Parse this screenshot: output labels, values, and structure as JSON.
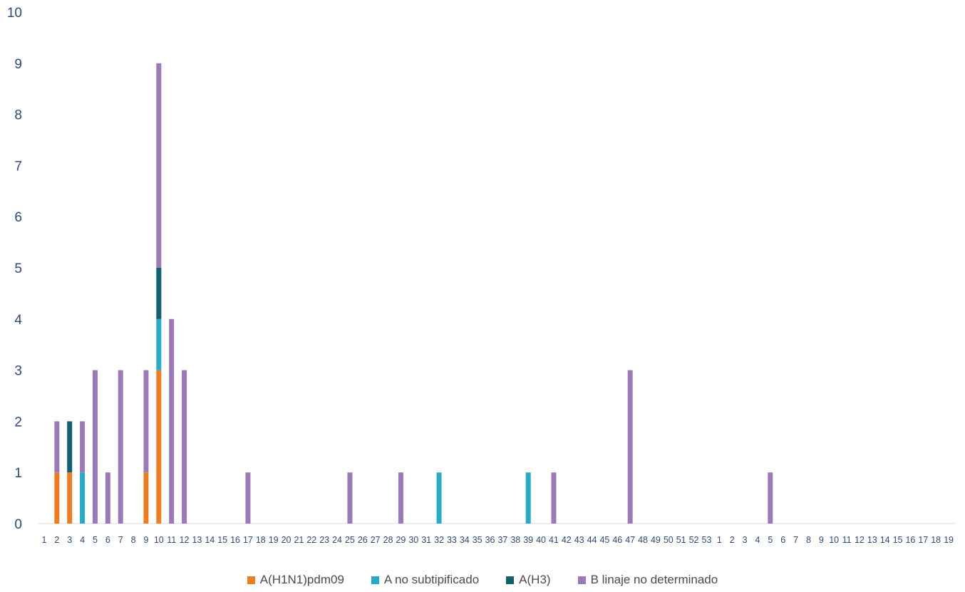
{
  "chart_data": {
    "type": "bar",
    "stacked": true,
    "title": "",
    "xlabel": "",
    "ylabel": "",
    "ylim": [
      0,
      10
    ],
    "yticks": [
      0,
      1,
      2,
      3,
      4,
      5,
      6,
      7,
      8,
      9,
      10
    ],
    "categories": [
      "1",
      "2",
      "3",
      "4",
      "5",
      "6",
      "7",
      "8",
      "9",
      "10",
      "11",
      "12",
      "13",
      "14",
      "15",
      "16",
      "17",
      "18",
      "19",
      "20",
      "21",
      "22",
      "23",
      "24",
      "25",
      "26",
      "27",
      "28",
      "29",
      "30",
      "31",
      "32",
      "33",
      "34",
      "35",
      "36",
      "37",
      "38",
      "39",
      "40",
      "41",
      "42",
      "43",
      "44",
      "45",
      "46",
      "47",
      "48",
      "49",
      "50",
      "51",
      "52",
      "53",
      "1",
      "2",
      "3",
      "4",
      "5",
      "6",
      "7",
      "8",
      "9",
      "10",
      "11",
      "12",
      "13",
      "14",
      "15",
      "16",
      "17",
      "18",
      "19"
    ],
    "series": [
      {
        "name": "A(H1N1)pdm09",
        "color": "#ed7d22",
        "values": [
          0,
          1,
          1,
          0,
          0,
          0,
          0,
          0,
          1,
          3,
          0,
          0,
          0,
          0,
          0,
          0,
          0,
          0,
          0,
          0,
          0,
          0,
          0,
          0,
          0,
          0,
          0,
          0,
          0,
          0,
          0,
          0,
          0,
          0,
          0,
          0,
          0,
          0,
          0,
          0,
          0,
          0,
          0,
          0,
          0,
          0,
          0,
          0,
          0,
          0,
          0,
          0,
          0,
          0,
          0,
          0,
          0,
          0,
          0,
          0,
          0,
          0,
          0,
          0,
          0,
          0,
          0,
          0,
          0,
          0,
          0,
          0
        ]
      },
      {
        "name": "A no subtipificado",
        "color": "#2aaac5",
        "values": [
          0,
          0,
          0,
          1,
          0,
          0,
          0,
          0,
          0,
          1,
          0,
          0,
          0,
          0,
          0,
          0,
          0,
          0,
          0,
          0,
          0,
          0,
          0,
          0,
          0,
          0,
          0,
          0,
          0,
          0,
          0,
          1,
          0,
          0,
          0,
          0,
          0,
          0,
          1,
          0,
          0,
          0,
          0,
          0,
          0,
          0,
          0,
          0,
          0,
          0,
          0,
          0,
          0,
          0,
          0,
          0,
          0,
          0,
          0,
          0,
          0,
          0,
          0,
          0,
          0,
          0,
          0,
          0,
          0,
          0,
          0,
          0
        ]
      },
      {
        "name": "A(H3)",
        "color": "#125f6e",
        "values": [
          0,
          0,
          1,
          0,
          0,
          0,
          0,
          0,
          0,
          1,
          0,
          0,
          0,
          0,
          0,
          0,
          0,
          0,
          0,
          0,
          0,
          0,
          0,
          0,
          0,
          0,
          0,
          0,
          0,
          0,
          0,
          0,
          0,
          0,
          0,
          0,
          0,
          0,
          0,
          0,
          0,
          0,
          0,
          0,
          0,
          0,
          0,
          0,
          0,
          0,
          0,
          0,
          0,
          0,
          0,
          0,
          0,
          0,
          0,
          0,
          0,
          0,
          0,
          0,
          0,
          0,
          0,
          0,
          0,
          0,
          0,
          0
        ]
      },
      {
        "name": "B linaje no determinado",
        "color": "#9a7bb7",
        "values": [
          0,
          1,
          0,
          1,
          3,
          1,
          3,
          0,
          2,
          4,
          4,
          3,
          0,
          0,
          0,
          0,
          1,
          0,
          0,
          0,
          0,
          0,
          0,
          0,
          1,
          0,
          0,
          0,
          1,
          0,
          0,
          0,
          0,
          0,
          0,
          0,
          0,
          0,
          0,
          0,
          1,
          0,
          0,
          0,
          0,
          0,
          3,
          0,
          0,
          0,
          0,
          0,
          0,
          0,
          0,
          0,
          0,
          1,
          0,
          0,
          0,
          0,
          0,
          0,
          0,
          0,
          0,
          0,
          0,
          0,
          0,
          0
        ]
      }
    ],
    "legend_position": "bottom",
    "grid": false
  }
}
